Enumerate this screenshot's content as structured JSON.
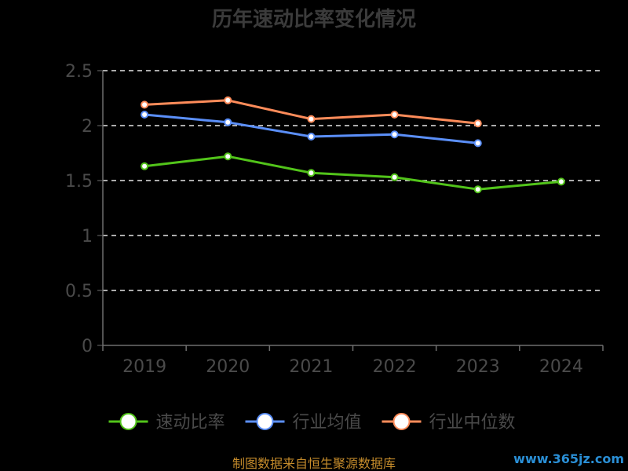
{
  "chart_data": {
    "type": "line",
    "title": "历年速动比率变化情况",
    "categories": [
      "2019",
      "2020",
      "2021",
      "2022",
      "2023",
      "2024"
    ],
    "y_ticks": [
      "0",
      "0.5",
      "1",
      "1.5",
      "2",
      "2.5"
    ],
    "ylim": [
      0,
      2.5
    ],
    "grid": true,
    "legend_position": "bottom",
    "series": [
      {
        "name": "速动比率",
        "color": "#52c41a",
        "values": [
          1.63,
          1.72,
          1.57,
          1.53,
          1.42,
          1.49
        ]
      },
      {
        "name": "行业均值",
        "color": "#5b8ff9",
        "values": [
          2.1,
          2.03,
          1.9,
          1.92,
          1.84,
          null
        ]
      },
      {
        "name": "行业中位数",
        "color": "#ff8c5a",
        "values": [
          2.19,
          2.23,
          2.06,
          2.1,
          2.02,
          null
        ]
      }
    ]
  },
  "footer": {
    "source": "制图数据来自恒生聚源数据库",
    "watermark": "www.365jz.com"
  }
}
